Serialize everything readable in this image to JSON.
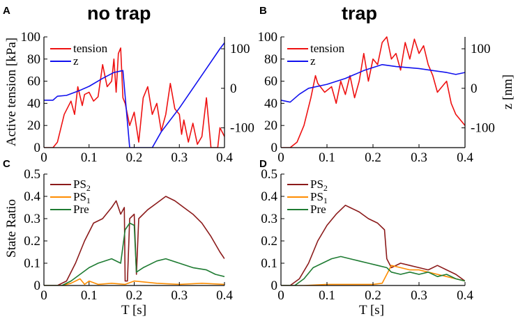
{
  "figure": {
    "columns": [
      {
        "letter_top": "A",
        "letter_bottom": "C",
        "title": "no trap"
      },
      {
        "letter_top": "B",
        "letter_bottom": "D",
        "title": "trap"
      }
    ],
    "y_label_tension": "Active tension [kPa]",
    "y_label_z": "z [nm]",
    "y_label_state": "State Ratio",
    "x_label": "T [s]"
  },
  "chart_data": [
    {
      "id": "A",
      "type": "line",
      "title": "no trap",
      "xlim": [
        0,
        0.4
      ],
      "xticks": [
        "0",
        "0.1",
        "0.2",
        "0.3",
        "0.4"
      ],
      "ylim": [
        0,
        100
      ],
      "yticks": [
        "0",
        "20",
        "40",
        "60",
        "80",
        "100"
      ],
      "y2lim": [
        -150,
        130
      ],
      "y2ticks": [
        "-100",
        "0",
        "100"
      ],
      "ylabel": "Active tension [kPa]",
      "legend": [
        "tension",
        "z"
      ],
      "series": [
        {
          "name": "tension",
          "color": "#ee1111",
          "axis": "left",
          "points": [
            [
              0,
              0
            ],
            [
              0.02,
              0
            ],
            [
              0.03,
              5
            ],
            [
              0.045,
              30
            ],
            [
              0.06,
              42
            ],
            [
              0.068,
              30
            ],
            [
              0.075,
              55
            ],
            [
              0.085,
              38
            ],
            [
              0.09,
              48
            ],
            [
              0.1,
              50
            ],
            [
              0.11,
              42
            ],
            [
              0.12,
              46
            ],
            [
              0.13,
              75
            ],
            [
              0.14,
              55
            ],
            [
              0.15,
              60
            ],
            [
              0.155,
              80
            ],
            [
              0.16,
              50
            ],
            [
              0.165,
              85
            ],
            [
              0.17,
              90
            ],
            [
              0.175,
              45
            ],
            [
              0.18,
              40
            ],
            [
              0.19,
              20
            ],
            [
              0.2,
              32
            ],
            [
              0.21,
              5
            ],
            [
              0.22,
              45
            ],
            [
              0.23,
              55
            ],
            [
              0.24,
              30
            ],
            [
              0.25,
              40
            ],
            [
              0.26,
              15
            ],
            [
              0.27,
              30
            ],
            [
              0.28,
              58
            ],
            [
              0.29,
              35
            ],
            [
              0.3,
              30
            ],
            [
              0.305,
              12
            ],
            [
              0.31,
              25
            ],
            [
              0.32,
              5
            ],
            [
              0.33,
              22
            ],
            [
              0.34,
              3
            ],
            [
              0.35,
              10
            ],
            [
              0.36,
              45
            ],
            [
              0.37,
              0
            ],
            [
              0.385,
              0
            ],
            [
              0.39,
              18
            ],
            [
              0.4,
              10
            ]
          ]
        },
        {
          "name": "z",
          "color": "#1111ee",
          "axis": "right",
          "points": [
            [
              0,
              -30
            ],
            [
              0.02,
              -30
            ],
            [
              0.03,
              -20
            ],
            [
              0.05,
              -18
            ],
            [
              0.08,
              -5
            ],
            [
              0.1,
              5
            ],
            [
              0.13,
              25
            ],
            [
              0.155,
              40
            ],
            [
              0.175,
              45
            ],
            [
              0.183,
              -60
            ],
            [
              0.19,
              -150
            ],
            [
              0.24,
              -150
            ],
            [
              0.26,
              -110
            ],
            [
              0.3,
              -50
            ],
            [
              0.33,
              0
            ],
            [
              0.36,
              50
            ],
            [
              0.39,
              100
            ],
            [
              0.4,
              115
            ]
          ]
        }
      ]
    },
    {
      "id": "B",
      "type": "line",
      "title": "trap",
      "xlim": [
        0,
        0.4
      ],
      "xticks": [
        "0",
        "0.1",
        "0.2",
        "0.3",
        "0.4"
      ],
      "ylim": [
        0,
        100
      ],
      "yticks": [
        "0",
        "20",
        "40",
        "60",
        "80",
        "100"
      ],
      "y2lim": [
        -150,
        130
      ],
      "y2ticks": [
        "-100",
        "0",
        "100"
      ],
      "y2label": "z [nm]",
      "legend": [
        "tension",
        "z"
      ],
      "series": [
        {
          "name": "tension",
          "color": "#ee1111",
          "axis": "left",
          "points": [
            [
              0,
              0
            ],
            [
              0.02,
              0
            ],
            [
              0.035,
              5
            ],
            [
              0.05,
              20
            ],
            [
              0.065,
              45
            ],
            [
              0.075,
              65
            ],
            [
              0.08,
              58
            ],
            [
              0.095,
              50
            ],
            [
              0.11,
              55
            ],
            [
              0.12,
              40
            ],
            [
              0.13,
              60
            ],
            [
              0.14,
              48
            ],
            [
              0.15,
              65
            ],
            [
              0.16,
              45
            ],
            [
              0.17,
              60
            ],
            [
              0.18,
              85
            ],
            [
              0.19,
              60
            ],
            [
              0.2,
              80
            ],
            [
              0.21,
              75
            ],
            [
              0.22,
              95
            ],
            [
              0.23,
              100
            ],
            [
              0.24,
              80
            ],
            [
              0.25,
              85
            ],
            [
              0.26,
              70
            ],
            [
              0.27,
              95
            ],
            [
              0.28,
              80
            ],
            [
              0.29,
              98
            ],
            [
              0.3,
              85
            ],
            [
              0.31,
              92
            ],
            [
              0.32,
              75
            ],
            [
              0.33,
              65
            ],
            [
              0.34,
              50
            ],
            [
              0.35,
              55
            ],
            [
              0.36,
              60
            ],
            [
              0.37,
              40
            ],
            [
              0.38,
              30
            ],
            [
              0.39,
              25
            ],
            [
              0.4,
              20
            ]
          ]
        },
        {
          "name": "z",
          "color": "#1111ee",
          "axis": "right",
          "points": [
            [
              0,
              -30
            ],
            [
              0.02,
              -35
            ],
            [
              0.04,
              -15
            ],
            [
              0.06,
              0
            ],
            [
              0.1,
              10
            ],
            [
              0.14,
              25
            ],
            [
              0.18,
              45
            ],
            [
              0.22,
              60
            ],
            [
              0.25,
              55
            ],
            [
              0.3,
              50
            ],
            [
              0.33,
              45
            ],
            [
              0.36,
              40
            ],
            [
              0.38,
              35
            ],
            [
              0.4,
              40
            ]
          ]
        }
      ]
    },
    {
      "id": "C",
      "type": "line",
      "xlim": [
        0,
        0.4
      ],
      "xticks": [
        "0",
        "0.1",
        "0.2",
        "0.3",
        "0.4"
      ],
      "ylim": [
        0,
        0.5
      ],
      "yticks": [
        "0",
        "0.1",
        "0.2",
        "0.3",
        "0.4",
        "0.5"
      ],
      "ylabel": "State Ratio",
      "xlabel": "T [s]",
      "legend": [
        "PS",
        "PS",
        "Pre"
      ],
      "legend_subscripts": [
        "2",
        "1",
        ""
      ],
      "series": [
        {
          "name": "PS2",
          "color": "#8b1a1a",
          "points": [
            [
              0,
              0
            ],
            [
              0.03,
              0
            ],
            [
              0.05,
              0.02
            ],
            [
              0.07,
              0.1
            ],
            [
              0.09,
              0.2
            ],
            [
              0.11,
              0.28
            ],
            [
              0.13,
              0.3
            ],
            [
              0.15,
              0.35
            ],
            [
              0.16,
              0.38
            ],
            [
              0.17,
              0.32
            ],
            [
              0.178,
              0.35
            ],
            [
              0.18,
              0.02
            ],
            [
              0.185,
              0.02
            ],
            [
              0.19,
              0.3
            ],
            [
              0.2,
              0.32
            ],
            [
              0.205,
              0.05
            ],
            [
              0.21,
              0.3
            ],
            [
              0.23,
              0.34
            ],
            [
              0.25,
              0.37
            ],
            [
              0.27,
              0.4
            ],
            [
              0.29,
              0.38
            ],
            [
              0.31,
              0.35
            ],
            [
              0.33,
              0.32
            ],
            [
              0.35,
              0.28
            ],
            [
              0.37,
              0.22
            ],
            [
              0.39,
              0.15
            ],
            [
              0.4,
              0.12
            ]
          ]
        },
        {
          "name": "PS1",
          "color": "#ff8c00",
          "points": [
            [
              0,
              0
            ],
            [
              0.04,
              0
            ],
            [
              0.06,
              0.01
            ],
            [
              0.08,
              0.03
            ],
            [
              0.09,
              0.005
            ],
            [
              0.1,
              0.02
            ],
            [
              0.12,
              0.005
            ],
            [
              0.15,
              0.01
            ],
            [
              0.18,
              0.005
            ],
            [
              0.2,
              0.02
            ],
            [
              0.25,
              0.01
            ],
            [
              0.3,
              0.005
            ],
            [
              0.35,
              0.01
            ],
            [
              0.4,
              0.005
            ]
          ]
        },
        {
          "name": "Pre",
          "color": "#1e7b32",
          "points": [
            [
              0,
              0
            ],
            [
              0.04,
              0
            ],
            [
              0.06,
              0.02
            ],
            [
              0.08,
              0.05
            ],
            [
              0.1,
              0.08
            ],
            [
              0.12,
              0.1
            ],
            [
              0.15,
              0.12
            ],
            [
              0.17,
              0.1
            ],
            [
              0.18,
              0.25
            ],
            [
              0.19,
              0.28
            ],
            [
              0.2,
              0.27
            ],
            [
              0.205,
              0.06
            ],
            [
              0.22,
              0.08
            ],
            [
              0.25,
              0.11
            ],
            [
              0.27,
              0.12
            ],
            [
              0.3,
              0.1
            ],
            [
              0.33,
              0.08
            ],
            [
              0.36,
              0.07
            ],
            [
              0.38,
              0.05
            ],
            [
              0.4,
              0.04
            ]
          ]
        }
      ]
    },
    {
      "id": "D",
      "type": "line",
      "xlim": [
        0,
        0.4
      ],
      "xticks": [
        "0",
        "0.1",
        "0.2",
        "0.3",
        "0.4"
      ],
      "ylim": [
        0,
        0.5
      ],
      "yticks": [
        "0",
        "0.1",
        "0.2",
        "0.3",
        "0.4",
        "0.5"
      ],
      "xlabel": "T [s]",
      "legend": [
        "PS",
        "PS",
        "Pre"
      ],
      "legend_subscripts": [
        "2",
        "1",
        ""
      ],
      "series": [
        {
          "name": "PS2",
          "color": "#8b1a1a",
          "points": [
            [
              0,
              0
            ],
            [
              0.02,
              0
            ],
            [
              0.04,
              0.03
            ],
            [
              0.06,
              0.1
            ],
            [
              0.08,
              0.2
            ],
            [
              0.1,
              0.27
            ],
            [
              0.12,
              0.32
            ],
            [
              0.14,
              0.36
            ],
            [
              0.15,
              0.35
            ],
            [
              0.17,
              0.33
            ],
            [
              0.19,
              0.3
            ],
            [
              0.21,
              0.28
            ],
            [
              0.225,
              0.25
            ],
            [
              0.23,
              0.12
            ],
            [
              0.24,
              0.08
            ],
            [
              0.26,
              0.1
            ],
            [
              0.28,
              0.09
            ],
            [
              0.3,
              0.08
            ],
            [
              0.32,
              0.07
            ],
            [
              0.34,
              0.09
            ],
            [
              0.36,
              0.07
            ],
            [
              0.38,
              0.05
            ],
            [
              0.4,
              0.02
            ]
          ]
        },
        {
          "name": "PS1",
          "color": "#ff8c00",
          "points": [
            [
              0,
              0
            ],
            [
              0.05,
              0
            ],
            [
              0.1,
              0.005
            ],
            [
              0.15,
              0.005
            ],
            [
              0.2,
              0.005
            ],
            [
              0.22,
              0.01
            ],
            [
              0.23,
              0.05
            ],
            [
              0.24,
              0.09
            ],
            [
              0.26,
              0.08
            ],
            [
              0.28,
              0.07
            ],
            [
              0.3,
              0.07
            ],
            [
              0.32,
              0.06
            ],
            [
              0.34,
              0.05
            ],
            [
              0.36,
              0.04
            ],
            [
              0.38,
              0.03
            ],
            [
              0.4,
              0.02
            ]
          ]
        },
        {
          "name": "Pre",
          "color": "#1e7b32",
          "points": [
            [
              0,
              0
            ],
            [
              0.03,
              0
            ],
            [
              0.05,
              0.03
            ],
            [
              0.07,
              0.08
            ],
            [
              0.09,
              0.1
            ],
            [
              0.11,
              0.12
            ],
            [
              0.13,
              0.13
            ],
            [
              0.15,
              0.12
            ],
            [
              0.17,
              0.11
            ],
            [
              0.19,
              0.1
            ],
            [
              0.21,
              0.09
            ],
            [
              0.23,
              0.08
            ],
            [
              0.24,
              0.06
            ],
            [
              0.26,
              0.05
            ],
            [
              0.28,
              0.06
            ],
            [
              0.3,
              0.05
            ],
            [
              0.32,
              0.06
            ],
            [
              0.34,
              0.04
            ],
            [
              0.36,
              0.05
            ],
            [
              0.38,
              0.03
            ],
            [
              0.4,
              0.02
            ]
          ]
        }
      ]
    }
  ]
}
